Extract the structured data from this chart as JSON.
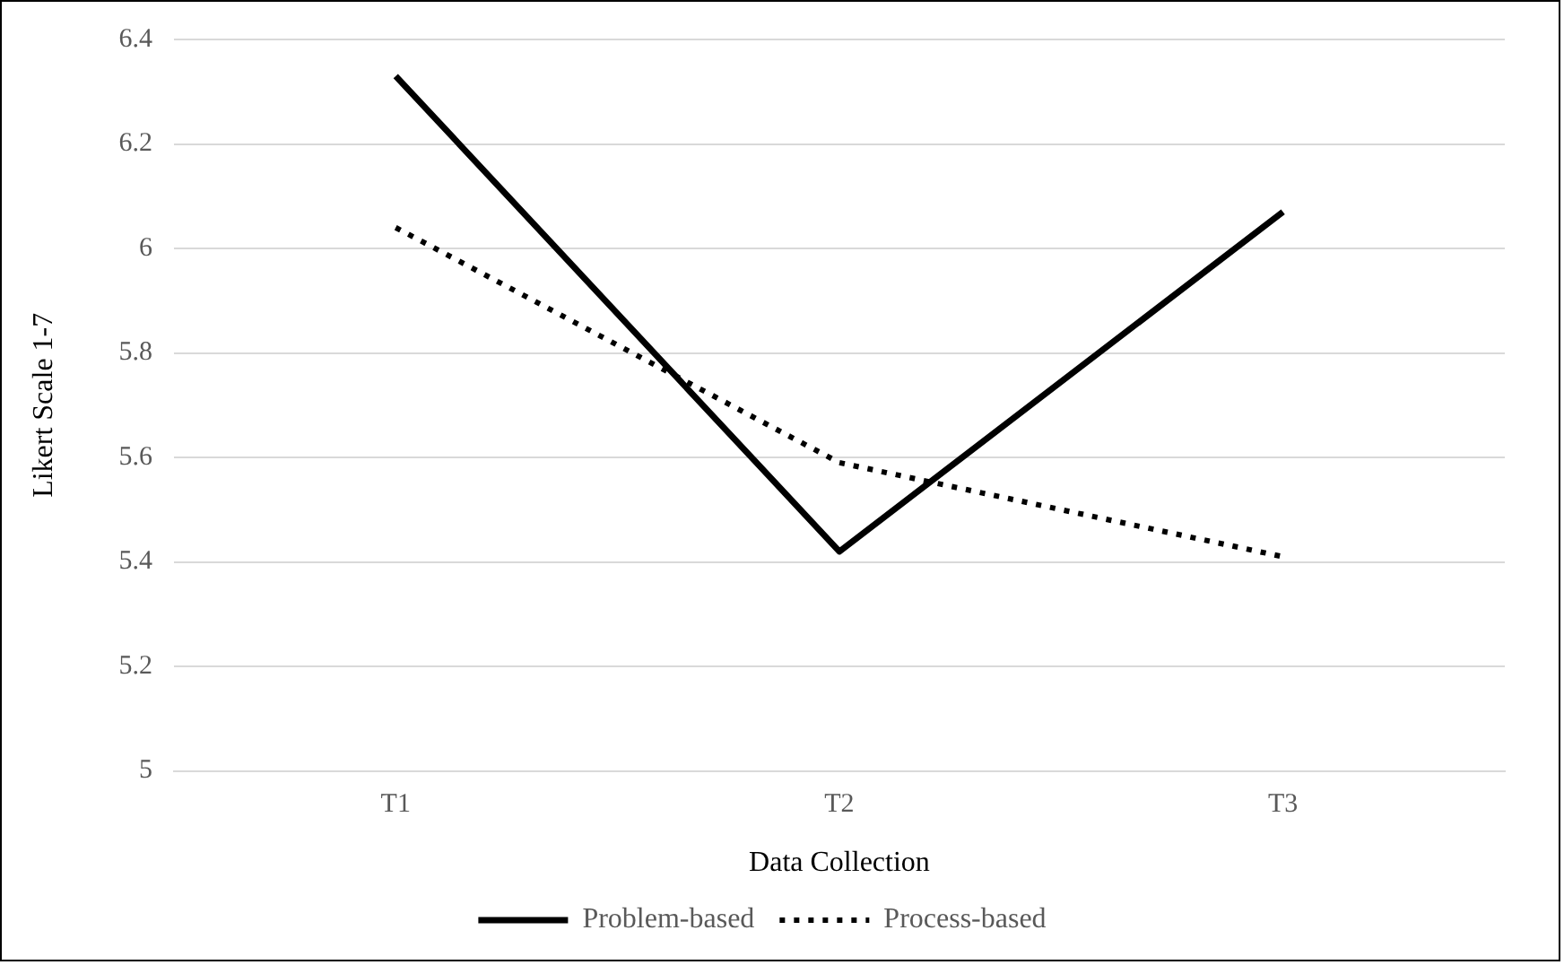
{
  "chart_data": {
    "type": "line",
    "xlabel": "Data Collection",
    "ylabel": "Likert Scale 1-7",
    "categories": [
      "T1",
      "T2",
      "T3"
    ],
    "series": [
      {
        "name": "Problem-based",
        "color": "#000000",
        "values": [
          6.33,
          5.42,
          6.07
        ],
        "line_style": "solid"
      },
      {
        "name": "Process-based",
        "color": "#000000",
        "values": [
          6.04,
          5.59,
          5.41
        ],
        "line_style": "dotted"
      }
    ],
    "ylim": [
      5,
      6.4
    ],
    "yticks": [
      5,
      5.2,
      5.4,
      5.6,
      5.8,
      6,
      6.2,
      6.4
    ],
    "grid": "y",
    "legend": "bottom",
    "marker": "none"
  }
}
